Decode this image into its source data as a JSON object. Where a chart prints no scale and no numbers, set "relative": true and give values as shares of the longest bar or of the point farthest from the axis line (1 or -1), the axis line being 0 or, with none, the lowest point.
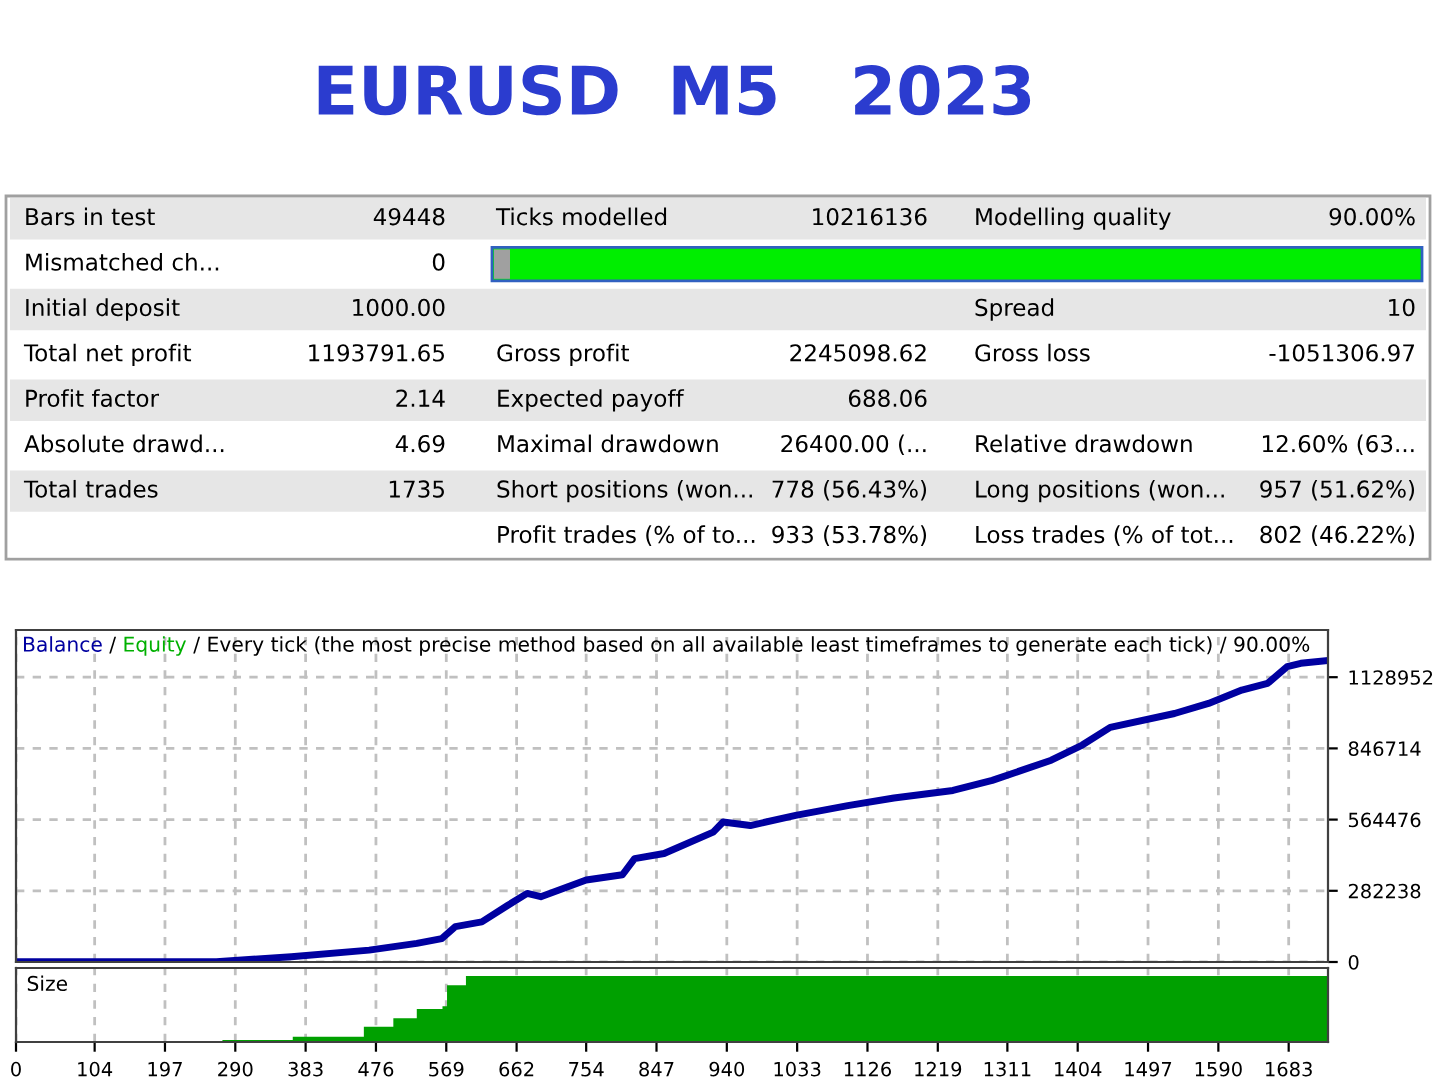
{
  "chart_data": [
    {
      "type": "other",
      "title": "EURUSD  M5   2023",
      "annotations": [
        "Bars in test",
        "49448",
        "Ticks modelled",
        "10216136",
        "Modelling quality",
        "90.00%",
        "Mismatched ch...",
        "0",
        null,
        null,
        null,
        null,
        "Initial deposit",
        "1000.00",
        null,
        null,
        "Spread",
        "10",
        "Total net profit",
        "1193791.65",
        "Gross profit",
        "2245098.62",
        "Gross loss",
        "-1051306.97",
        "Profit factor",
        "2.14",
        "Expected payoff",
        "688.06",
        null,
        null,
        "Absolute drawd...",
        "4.69",
        "Maximal drawdown",
        "26400.00 (...",
        "Relative drawdown",
        "12.60% (63...",
        "Total trades",
        "1735",
        "Short positions (won...",
        "778 (56.43%)",
        "Long positions (won...",
        "957 (51.62%)",
        null,
        null,
        "Profit trades (% of to...",
        "933 (53.78%)",
        "Loss trades (% of tot...",
        "802 (46.22%)"
      ]
    },
    {
      "type": "line",
      "annotations": [
        "/",
        "/ Every tick (the most precise method based on all available least timeframes to generate each tick) / 90.00%"
      ],
      "xlim": [
        0,
        1735
      ],
      "xticks": [
        0,
        104,
        197,
        290,
        383,
        476,
        569,
        662,
        754,
        847,
        940,
        1033,
        1126,
        1219,
        1311,
        1404,
        1497,
        1590,
        1683
      ],
      "ylim": [
        0,
        1316000
      ],
      "yticks": [
        0,
        282238,
        564476,
        846714,
        1128952
      ],
      "grid": true,
      "tick_labels": "y",
      "series": [
        {
          "name": "Balance",
          "color": "#0000a0",
          "x": [
            0,
            265,
            364,
            467,
            530,
            563,
            581,
            616,
            650,
            676,
            694,
            754,
            802,
            818,
            857,
            922,
            935,
            971,
            1031,
            1100,
            1161,
            1239,
            1291,
            1369,
            1410,
            1447,
            1532,
            1577,
            1621,
            1655,
            1681,
            1699,
            1735
          ],
          "values": [
            1000,
            1000,
            21000,
            47000,
            74000,
            93000,
            140000,
            159000,
            224000,
            272000,
            259000,
            325000,
            346000,
            410000,
            430000,
            515000,
            555000,
            541000,
            581000,
            620000,
            650000,
            680000,
            720000,
            800000,
            860000,
            930000,
            985000,
            1025000,
            1078000,
            1104000,
            1171000,
            1184000,
            1195000
          ]
        },
        {
          "name": "Equity",
          "color": "#00b000"
        }
      ]
    },
    {
      "type": "area",
      "title": "Size",
      "relative": true,
      "xlim": [
        0,
        1735
      ],
      "xticks": [
        0,
        104,
        197,
        290,
        383,
        476,
        569,
        662,
        754,
        847,
        940,
        1033,
        1126,
        1219,
        1311,
        1404,
        1497,
        1590,
        1683
      ],
      "grid": "x",
      "tick_labels": "x",
      "series": [
        {
          "color": "#00a000",
          "x": [
            0,
            272,
            273,
            366,
            460,
            499,
            530,
            564,
            570,
            595,
            1735
          ],
          "values": [
            0,
            0,
            0.03,
            0.08,
            0.23,
            0.36,
            0.5,
            0.54,
            0.86,
            1,
            1
          ]
        }
      ]
    }
  ]
}
